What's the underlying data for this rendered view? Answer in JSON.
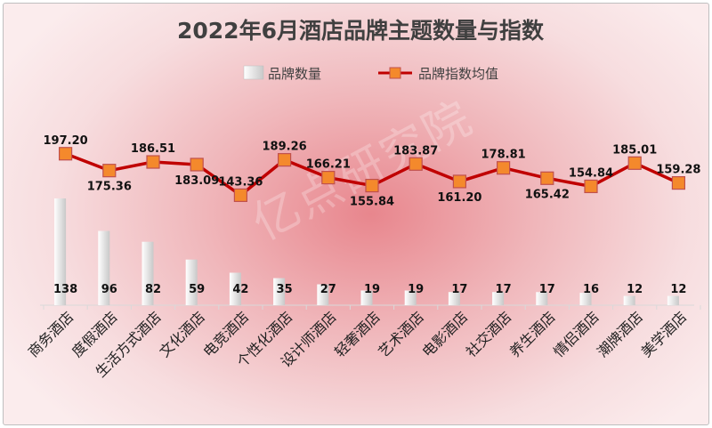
{
  "chart_data": {
    "type": "bar",
    "title": "2022年6月酒店品牌主题数量与指数",
    "categories": [
      "商务酒店",
      "度假酒店",
      "生活方式酒店",
      "文化酒店",
      "电竞酒店",
      "个性化酒店",
      "设计师酒店",
      "轻奢酒店",
      "艺术酒店",
      "电影酒店",
      "社交酒店",
      "养生酒店",
      "情侣酒店",
      "潮牌酒店",
      "美学酒店"
    ],
    "series": [
      {
        "name": "品牌数量",
        "type": "bar",
        "values": [
          138,
          96,
          82,
          59,
          42,
          35,
          27,
          19,
          19,
          17,
          17,
          17,
          16,
          12,
          12
        ],
        "labels": [
          "138",
          "96",
          "82",
          "59",
          "42",
          "35",
          "27",
          "19",
          "19",
          "17",
          "17",
          "17",
          "16",
          "12",
          "12"
        ]
      },
      {
        "name": "品牌指数均值",
        "type": "line",
        "values": [
          197.2,
          175.36,
          186.51,
          183.09,
          143.36,
          189.26,
          166.21,
          155.84,
          183.87,
          161.2,
          178.81,
          165.42,
          154.84,
          185.01,
          159.28
        ],
        "labels": [
          "197.20",
          "175.36",
          "186.51",
          "183.09",
          "143.36",
          "189.26",
          "166.21",
          "155.84",
          "183.87",
          "161.20",
          "178.81",
          "165.42",
          "154.84",
          "185.01",
          "159.28"
        ]
      }
    ],
    "legend": "top",
    "grid": false,
    "colors": {
      "line": "#c00000",
      "marker_fill": "#f4892c",
      "marker_edge": "#c0504d",
      "bar_light": "#ffffff",
      "bar_dark": "#c8c8c8"
    }
  },
  "watermark": "亿点研究院"
}
